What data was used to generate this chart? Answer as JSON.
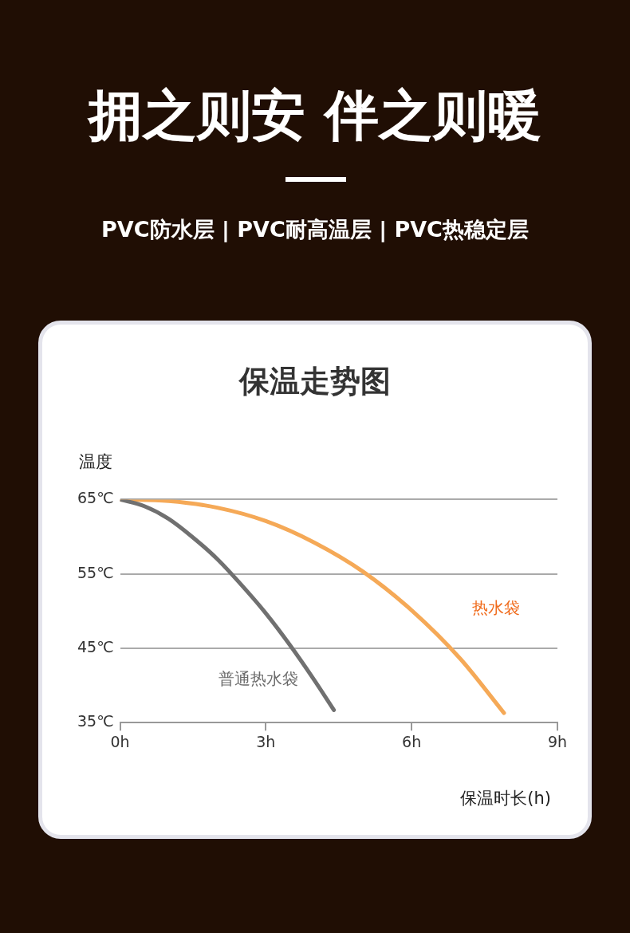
{
  "chart_data": {
    "type": "line",
    "title": "保温走势图",
    "annotations": [
      "拥之则安 伴之则暖",
      "PVC防水层 | PVC耐高温层 | PVC热稳定层"
    ],
    "xlabel": "保温时长(h)",
    "ylabel": "温度",
    "series": [
      {
        "name": "普通热水袋",
        "color": "#707070",
        "x": [
          0,
          0.5,
          1,
          1.5,
          2,
          2.5,
          3,
          3.5,
          4,
          4.4
        ],
        "values": [
          65,
          64.1,
          62.4,
          59.9,
          57,
          53.5,
          49.7,
          45.4,
          40.7,
          36.7
        ]
      },
      {
        "name": "热水袋",
        "color": "#f5a957",
        "x": [
          0,
          1,
          2,
          3,
          4,
          5,
          6,
          7,
          7.9
        ],
        "values": [
          65,
          64.8,
          63.9,
          62.1,
          59.2,
          55.3,
          50.1,
          43.6,
          36.3
        ]
      }
    ],
    "xlim": [
      0,
      9
    ],
    "xticks": [
      {
        "value": 0,
        "label": "0h"
      },
      {
        "value": 3,
        "label": "3h"
      },
      {
        "value": 6,
        "label": "6h"
      },
      {
        "value": 9,
        "label": "9h"
      }
    ],
    "ylim": [
      35,
      65
    ],
    "yticks": [
      {
        "value": 35,
        "label": "35℃"
      },
      {
        "value": 45,
        "label": "45℃"
      },
      {
        "value": 55,
        "label": "55℃"
      },
      {
        "value": 65,
        "label": "65℃"
      }
    ],
    "grid": "y",
    "legend": false,
    "marker": "none",
    "line_style": "solid"
  }
}
